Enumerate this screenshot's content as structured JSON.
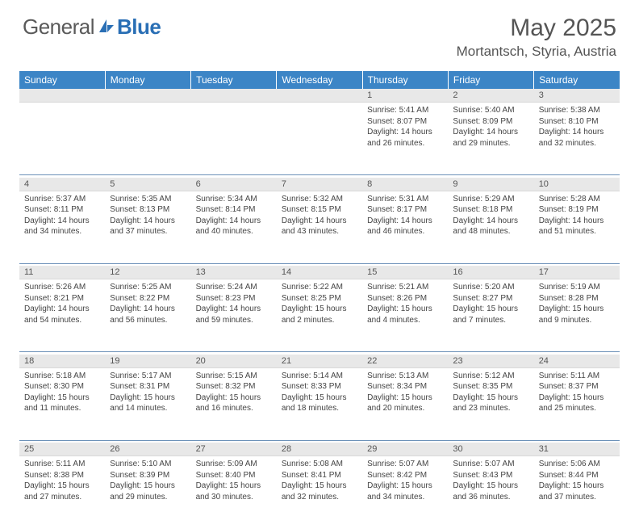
{
  "logo": {
    "text1": "General",
    "text2": "Blue"
  },
  "title": "May 2025",
  "location": "Mortantsch, Styria, Austria",
  "weekdays": [
    "Sunday",
    "Monday",
    "Tuesday",
    "Wednesday",
    "Thursday",
    "Friday",
    "Saturday"
  ],
  "colors": {
    "header_bg": "#3c85c6",
    "daynum_bg": "#e8e8e8",
    "rule": "#6b90b8",
    "logo_gray": "#5a5a5a",
    "logo_blue": "#2a6fb5"
  },
  "weeks": [
    [
      null,
      null,
      null,
      null,
      {
        "n": "1",
        "sr": "5:41 AM",
        "ss": "8:07 PM",
        "dl": "14 hours and 26 minutes."
      },
      {
        "n": "2",
        "sr": "5:40 AM",
        "ss": "8:09 PM",
        "dl": "14 hours and 29 minutes."
      },
      {
        "n": "3",
        "sr": "5:38 AM",
        "ss": "8:10 PM",
        "dl": "14 hours and 32 minutes."
      }
    ],
    [
      {
        "n": "4",
        "sr": "5:37 AM",
        "ss": "8:11 PM",
        "dl": "14 hours and 34 minutes."
      },
      {
        "n": "5",
        "sr": "5:35 AM",
        "ss": "8:13 PM",
        "dl": "14 hours and 37 minutes."
      },
      {
        "n": "6",
        "sr": "5:34 AM",
        "ss": "8:14 PM",
        "dl": "14 hours and 40 minutes."
      },
      {
        "n": "7",
        "sr": "5:32 AM",
        "ss": "8:15 PM",
        "dl": "14 hours and 43 minutes."
      },
      {
        "n": "8",
        "sr": "5:31 AM",
        "ss": "8:17 PM",
        "dl": "14 hours and 46 minutes."
      },
      {
        "n": "9",
        "sr": "5:29 AM",
        "ss": "8:18 PM",
        "dl": "14 hours and 48 minutes."
      },
      {
        "n": "10",
        "sr": "5:28 AM",
        "ss": "8:19 PM",
        "dl": "14 hours and 51 minutes."
      }
    ],
    [
      {
        "n": "11",
        "sr": "5:26 AM",
        "ss": "8:21 PM",
        "dl": "14 hours and 54 minutes."
      },
      {
        "n": "12",
        "sr": "5:25 AM",
        "ss": "8:22 PM",
        "dl": "14 hours and 56 minutes."
      },
      {
        "n": "13",
        "sr": "5:24 AM",
        "ss": "8:23 PM",
        "dl": "14 hours and 59 minutes."
      },
      {
        "n": "14",
        "sr": "5:22 AM",
        "ss": "8:25 PM",
        "dl": "15 hours and 2 minutes."
      },
      {
        "n": "15",
        "sr": "5:21 AM",
        "ss": "8:26 PM",
        "dl": "15 hours and 4 minutes."
      },
      {
        "n": "16",
        "sr": "5:20 AM",
        "ss": "8:27 PM",
        "dl": "15 hours and 7 minutes."
      },
      {
        "n": "17",
        "sr": "5:19 AM",
        "ss": "8:28 PM",
        "dl": "15 hours and 9 minutes."
      }
    ],
    [
      {
        "n": "18",
        "sr": "5:18 AM",
        "ss": "8:30 PM",
        "dl": "15 hours and 11 minutes."
      },
      {
        "n": "19",
        "sr": "5:17 AM",
        "ss": "8:31 PM",
        "dl": "15 hours and 14 minutes."
      },
      {
        "n": "20",
        "sr": "5:15 AM",
        "ss": "8:32 PM",
        "dl": "15 hours and 16 minutes."
      },
      {
        "n": "21",
        "sr": "5:14 AM",
        "ss": "8:33 PM",
        "dl": "15 hours and 18 minutes."
      },
      {
        "n": "22",
        "sr": "5:13 AM",
        "ss": "8:34 PM",
        "dl": "15 hours and 20 minutes."
      },
      {
        "n": "23",
        "sr": "5:12 AM",
        "ss": "8:35 PM",
        "dl": "15 hours and 23 minutes."
      },
      {
        "n": "24",
        "sr": "5:11 AM",
        "ss": "8:37 PM",
        "dl": "15 hours and 25 minutes."
      }
    ],
    [
      {
        "n": "25",
        "sr": "5:11 AM",
        "ss": "8:38 PM",
        "dl": "15 hours and 27 minutes."
      },
      {
        "n": "26",
        "sr": "5:10 AM",
        "ss": "8:39 PM",
        "dl": "15 hours and 29 minutes."
      },
      {
        "n": "27",
        "sr": "5:09 AM",
        "ss": "8:40 PM",
        "dl": "15 hours and 30 minutes."
      },
      {
        "n": "28",
        "sr": "5:08 AM",
        "ss": "8:41 PM",
        "dl": "15 hours and 32 minutes."
      },
      {
        "n": "29",
        "sr": "5:07 AM",
        "ss": "8:42 PM",
        "dl": "15 hours and 34 minutes."
      },
      {
        "n": "30",
        "sr": "5:07 AM",
        "ss": "8:43 PM",
        "dl": "15 hours and 36 minutes."
      },
      {
        "n": "31",
        "sr": "5:06 AM",
        "ss": "8:44 PM",
        "dl": "15 hours and 37 minutes."
      }
    ]
  ],
  "labels": {
    "sunrise": "Sunrise:",
    "sunset": "Sunset:",
    "daylight": "Daylight:"
  }
}
